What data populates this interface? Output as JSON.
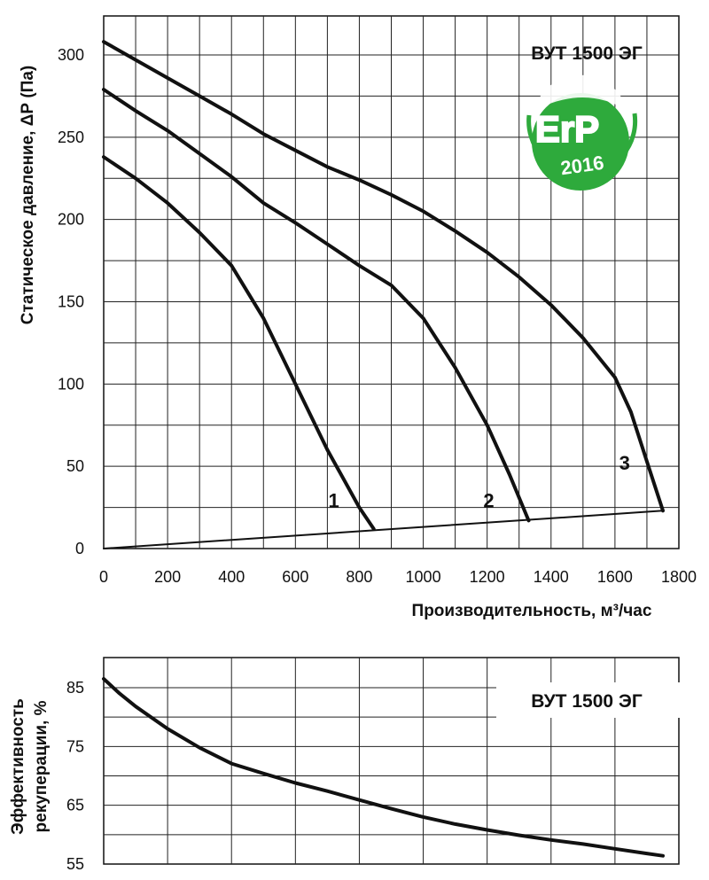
{
  "chart_data": [
    {
      "type": "line",
      "title": "ВУТ 1500 ЭГ",
      "xlabel": "Производительность, м³/час",
      "ylabel": "Статическое давление, ΔР (Па)",
      "xlim": [
        0,
        1800
      ],
      "ylim": [
        0,
        325
      ],
      "x_ticks": [
        "0",
        "200",
        "400",
        "600",
        "800",
        "1000",
        "1200",
        "1400",
        "1600",
        "1800"
      ],
      "y_ticks": [
        "0",
        "50",
        "100",
        "150",
        "200",
        "250",
        "300"
      ],
      "grid": true,
      "badge": {
        "line1": "ErP",
        "line2": "2016",
        "color": "#2eaa3c"
      },
      "series": [
        {
          "name": "1",
          "points": [
            [
              0,
              238
            ],
            [
              100,
              225
            ],
            [
              200,
              210
            ],
            [
              300,
              192
            ],
            [
              400,
              172
            ],
            [
              500,
              140
            ],
            [
              600,
              100
            ],
            [
              700,
              60
            ],
            [
              800,
              25
            ],
            [
              845,
              12
            ]
          ]
        },
        {
          "name": "2",
          "points": [
            [
              0,
              279
            ],
            [
              100,
              266
            ],
            [
              200,
              254
            ],
            [
              300,
              240
            ],
            [
              400,
              226
            ],
            [
              500,
              210
            ],
            [
              600,
              198
            ],
            [
              700,
              185
            ],
            [
              800,
              172
            ],
            [
              900,
              160
            ],
            [
              1000,
              140
            ],
            [
              1100,
              110
            ],
            [
              1200,
              75
            ],
            [
              1270,
              45
            ],
            [
              1330,
              17
            ]
          ]
        },
        {
          "name": "3",
          "points": [
            [
              0,
              308
            ],
            [
              100,
              297
            ],
            [
              200,
              286
            ],
            [
              300,
              275
            ],
            [
              400,
              264
            ],
            [
              500,
              252
            ],
            [
              600,
              242
            ],
            [
              700,
              232
            ],
            [
              800,
              224
            ],
            [
              900,
              215
            ],
            [
              1000,
              205
            ],
            [
              1100,
              193
            ],
            [
              1200,
              180
            ],
            [
              1300,
              165
            ],
            [
              1400,
              148
            ],
            [
              1500,
              128
            ],
            [
              1600,
              104
            ],
            [
              1650,
              83
            ],
            [
              1700,
              53
            ],
            [
              1750,
              23
            ]
          ]
        },
        {
          "name": "",
          "points": [
            [
              0,
              0
            ],
            [
              1750,
              23
            ]
          ]
        }
      ],
      "series_labels": [
        {
          "text": "1",
          "x": 720,
          "y": 25
        },
        {
          "text": "2",
          "x": 1205,
          "y": 25
        },
        {
          "text": "3",
          "x": 1630,
          "y": 48
        }
      ]
    },
    {
      "type": "line",
      "title": "ВУТ 1500 ЭГ",
      "xlabel": "",
      "ylabel": "Эффективность рекуперации, %",
      "xlim": [
        0,
        1800
      ],
      "ylim": [
        55,
        90
      ],
      "y_ticks": [
        "55",
        "65",
        "75",
        "85"
      ],
      "grid": true,
      "series": [
        {
          "name": "",
          "points": [
            [
              0,
              86.5
            ],
            [
              50,
              84.0
            ],
            [
              100,
              81.8
            ],
            [
              200,
              78.0
            ],
            [
              300,
              74.8
            ],
            [
              400,
              72.1
            ],
            [
              500,
              70.4
            ],
            [
              600,
              68.8
            ],
            [
              700,
              67.4
            ],
            [
              800,
              65.9
            ],
            [
              900,
              64.4
            ],
            [
              1000,
              63.0
            ],
            [
              1100,
              61.8
            ],
            [
              1200,
              60.8
            ],
            [
              1300,
              59.9
            ],
            [
              1400,
              59.1
            ],
            [
              1500,
              58.4
            ],
            [
              1600,
              57.6
            ],
            [
              1700,
              56.8
            ],
            [
              1750,
              56.4
            ]
          ]
        }
      ]
    }
  ]
}
